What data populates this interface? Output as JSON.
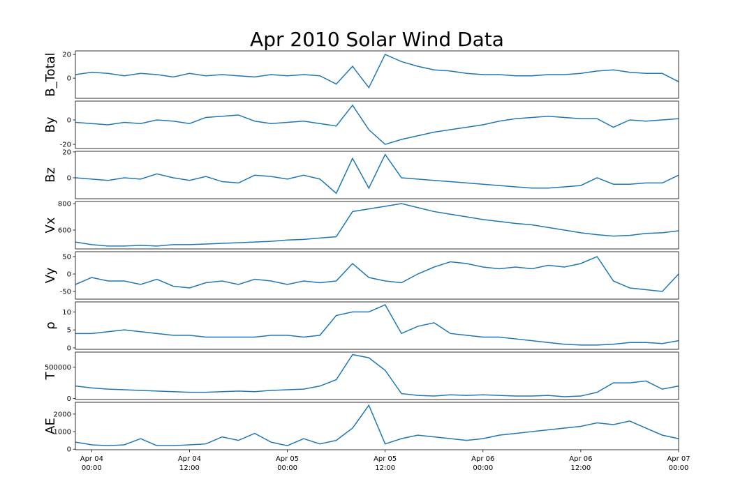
{
  "chart_data": [
    {
      "type": "line",
      "title": "Apr 2010 Solar Wind Data",
      "ylabel": "B_Total",
      "x": [
        "Apr 03 22:00",
        "Apr 04 00:00",
        "Apr 04 02:00",
        "Apr 04 04:00",
        "Apr 04 06:00",
        "Apr 04 08:00",
        "Apr 04 10:00",
        "Apr 04 12:00",
        "Apr 04 14:00",
        "Apr 04 16:00",
        "Apr 04 18:00",
        "Apr 04 20:00",
        "Apr 04 22:00",
        "Apr 05 00:00",
        "Apr 05 02:00",
        "Apr 05 04:00",
        "Apr 05 06:00",
        "Apr 05 08:00",
        "Apr 05 10:00",
        "Apr 05 12:00",
        "Apr 05 14:00",
        "Apr 05 16:00",
        "Apr 05 18:00",
        "Apr 05 20:00",
        "Apr 05 22:00",
        "Apr 06 00:00",
        "Apr 06 02:00",
        "Apr 06 04:00",
        "Apr 06 06:00",
        "Apr 06 08:00",
        "Apr 06 10:00",
        "Apr 06 12:00",
        "Apr 06 14:00",
        "Apr 06 16:00",
        "Apr 06 18:00",
        "Apr 06 20:00",
        "Apr 06 22:00",
        "Apr 07 00:00"
      ],
      "series": [
        {
          "color": "#1f77b4",
          "values": [
            3,
            5,
            4,
            2,
            4,
            3,
            1,
            4,
            2,
            3,
            2,
            1,
            3,
            2,
            3,
            2,
            -5,
            10,
            -8,
            20,
            14,
            10,
            7,
            6,
            4,
            3,
            3,
            2,
            2,
            3,
            3,
            4,
            6,
            7,
            5,
            4,
            4,
            -3
          ]
        }
      ],
      "ylim": [
        -17,
        23
      ],
      "yticks": [
        0,
        20
      ]
    },
    {
      "type": "line",
      "ylabel": "By",
      "x": [
        "Apr 03 22:00",
        "Apr 04 00:00",
        "Apr 04 02:00",
        "Apr 04 04:00",
        "Apr 04 06:00",
        "Apr 04 08:00",
        "Apr 04 10:00",
        "Apr 04 12:00",
        "Apr 04 14:00",
        "Apr 04 16:00",
        "Apr 04 18:00",
        "Apr 04 20:00",
        "Apr 04 22:00",
        "Apr 05 00:00",
        "Apr 05 02:00",
        "Apr 05 04:00",
        "Apr 05 06:00",
        "Apr 05 08:00",
        "Apr 05 10:00",
        "Apr 05 12:00",
        "Apr 05 14:00",
        "Apr 05 16:00",
        "Apr 05 18:00",
        "Apr 05 20:00",
        "Apr 05 22:00",
        "Apr 06 00:00",
        "Apr 06 02:00",
        "Apr 06 04:00",
        "Apr 06 06:00",
        "Apr 06 08:00",
        "Apr 06 10:00",
        "Apr 06 12:00",
        "Apr 06 14:00",
        "Apr 06 16:00",
        "Apr 06 18:00",
        "Apr 06 20:00",
        "Apr 06 22:00",
        "Apr 07 00:00"
      ],
      "series": [
        {
          "color": "#1f77b4",
          "values": [
            -2,
            -3,
            -4,
            -2,
            -3,
            0,
            -1,
            -3,
            2,
            3,
            4,
            -1,
            -3,
            -2,
            -1,
            -3,
            -5,
            12,
            -8,
            -20,
            -16,
            -13,
            -10,
            -8,
            -6,
            -4,
            -1,
            1,
            2,
            3,
            2,
            1,
            1,
            -6,
            0,
            -1,
            0,
            1
          ]
        }
      ],
      "ylim": [
        -23.4,
        15.4
      ],
      "yticks": [
        -20,
        0
      ]
    },
    {
      "type": "line",
      "ylabel": "Bz",
      "x": [
        "Apr 03 22:00",
        "Apr 04 00:00",
        "Apr 04 02:00",
        "Apr 04 04:00",
        "Apr 04 06:00",
        "Apr 04 08:00",
        "Apr 04 10:00",
        "Apr 04 12:00",
        "Apr 04 14:00",
        "Apr 04 16:00",
        "Apr 04 18:00",
        "Apr 04 20:00",
        "Apr 04 22:00",
        "Apr 05 00:00",
        "Apr 05 02:00",
        "Apr 05 04:00",
        "Apr 05 06:00",
        "Apr 05 08:00",
        "Apr 05 10:00",
        "Apr 05 12:00",
        "Apr 05 14:00",
        "Apr 05 16:00",
        "Apr 05 18:00",
        "Apr 05 20:00",
        "Apr 05 22:00",
        "Apr 06 00:00",
        "Apr 06 02:00",
        "Apr 06 04:00",
        "Apr 06 06:00",
        "Apr 06 08:00",
        "Apr 06 10:00",
        "Apr 06 12:00",
        "Apr 06 14:00",
        "Apr 06 16:00",
        "Apr 06 18:00",
        "Apr 06 20:00",
        "Apr 06 22:00",
        "Apr 07 00:00"
      ],
      "series": [
        {
          "color": "#1f77b4",
          "values": [
            0,
            -1,
            -2,
            0,
            -1,
            3,
            0,
            -2,
            1,
            -3,
            -4,
            2,
            1,
            -1,
            2,
            -1,
            -12,
            15,
            -8,
            18,
            0,
            -1,
            -2,
            -3,
            -4,
            -5,
            -6,
            -7,
            -8,
            -8,
            -7,
            -6,
            0,
            -5,
            -5,
            -4,
            -4,
            2
          ]
        }
      ],
      "ylim": [
        -16.2,
        20.5
      ],
      "yticks": [
        0,
        20
      ]
    },
    {
      "type": "line",
      "ylabel": "Vx",
      "x": [
        "Apr 03 22:00",
        "Apr 04 00:00",
        "Apr 04 02:00",
        "Apr 04 04:00",
        "Apr 04 06:00",
        "Apr 04 08:00",
        "Apr 04 10:00",
        "Apr 04 12:00",
        "Apr 04 14:00",
        "Apr 04 16:00",
        "Apr 04 18:00",
        "Apr 04 20:00",
        "Apr 04 22:00",
        "Apr 05 00:00",
        "Apr 05 02:00",
        "Apr 05 04:00",
        "Apr 05 06:00",
        "Apr 05 08:00",
        "Apr 05 10:00",
        "Apr 05 12:00",
        "Apr 05 14:00",
        "Apr 05 16:00",
        "Apr 05 18:00",
        "Apr 05 20:00",
        "Apr 05 22:00",
        "Apr 06 00:00",
        "Apr 06 02:00",
        "Apr 06 04:00",
        "Apr 06 06:00",
        "Apr 06 08:00",
        "Apr 06 10:00",
        "Apr 06 12:00",
        "Apr 06 14:00",
        "Apr 06 16:00",
        "Apr 06 18:00",
        "Apr 06 20:00",
        "Apr 06 22:00",
        "Apr 07 00:00"
      ],
      "series": [
        {
          "color": "#1f77b4",
          "values": [
            510,
            490,
            480,
            480,
            485,
            480,
            490,
            490,
            495,
            500,
            505,
            510,
            515,
            525,
            530,
            540,
            550,
            740,
            760,
            780,
            800,
            770,
            740,
            720,
            700,
            680,
            665,
            650,
            640,
            620,
            600,
            580,
            565,
            555,
            560,
            575,
            580,
            595
          ]
        }
      ],
      "ylim": [
        458,
        816
      ],
      "yticks": [
        600,
        800
      ]
    },
    {
      "type": "line",
      "ylabel": "Vy",
      "x": [
        "Apr 03 22:00",
        "Apr 04 00:00",
        "Apr 04 02:00",
        "Apr 04 04:00",
        "Apr 04 06:00",
        "Apr 04 08:00",
        "Apr 04 10:00",
        "Apr 04 12:00",
        "Apr 04 14:00",
        "Apr 04 16:00",
        "Apr 04 18:00",
        "Apr 04 20:00",
        "Apr 04 22:00",
        "Apr 05 00:00",
        "Apr 05 02:00",
        "Apr 05 04:00",
        "Apr 05 06:00",
        "Apr 05 08:00",
        "Apr 05 10:00",
        "Apr 05 12:00",
        "Apr 05 14:00",
        "Apr 05 16:00",
        "Apr 05 18:00",
        "Apr 05 20:00",
        "Apr 05 22:00",
        "Apr 06 00:00",
        "Apr 06 02:00",
        "Apr 06 04:00",
        "Apr 06 06:00",
        "Apr 06 08:00",
        "Apr 06 10:00",
        "Apr 06 12:00",
        "Apr 06 14:00",
        "Apr 06 16:00",
        "Apr 06 18:00",
        "Apr 06 20:00",
        "Apr 06 22:00",
        "Apr 07 00:00"
      ],
      "series": [
        {
          "color": "#1f77b4",
          "values": [
            -30,
            -10,
            -20,
            -20,
            -30,
            -15,
            -35,
            -40,
            -25,
            -20,
            -30,
            -15,
            -20,
            -30,
            -20,
            -25,
            -20,
            30,
            -10,
            -20,
            -25,
            0,
            20,
            35,
            30,
            20,
            15,
            20,
            15,
            25,
            20,
            30,
            50,
            -20,
            -40,
            -45,
            -50,
            0
          ]
        }
      ],
      "ylim": [
        -72,
        64
      ],
      "yticks": [
        -50,
        0,
        50
      ]
    },
    {
      "type": "line",
      "ylabel": "ρ",
      "x": [
        "Apr 03 22:00",
        "Apr 04 00:00",
        "Apr 04 02:00",
        "Apr 04 04:00",
        "Apr 04 06:00",
        "Apr 04 08:00",
        "Apr 04 10:00",
        "Apr 04 12:00",
        "Apr 04 14:00",
        "Apr 04 16:00",
        "Apr 04 18:00",
        "Apr 04 20:00",
        "Apr 04 22:00",
        "Apr 05 00:00",
        "Apr 05 02:00",
        "Apr 05 04:00",
        "Apr 05 06:00",
        "Apr 05 08:00",
        "Apr 05 10:00",
        "Apr 05 12:00",
        "Apr 05 14:00",
        "Apr 05 16:00",
        "Apr 05 18:00",
        "Apr 05 20:00",
        "Apr 05 22:00",
        "Apr 06 00:00",
        "Apr 06 02:00",
        "Apr 06 04:00",
        "Apr 06 06:00",
        "Apr 06 08:00",
        "Apr 06 10:00",
        "Apr 06 12:00",
        "Apr 06 14:00",
        "Apr 06 16:00",
        "Apr 06 18:00",
        "Apr 06 20:00",
        "Apr 06 22:00",
        "Apr 07 00:00"
      ],
      "series": [
        {
          "color": "#1f77b4",
          "values": [
            4,
            4,
            4.5,
            5,
            4.5,
            4,
            3.5,
            3.5,
            3,
            3,
            3,
            3,
            3.5,
            3.5,
            3,
            3.5,
            9,
            10,
            10,
            12,
            4,
            6,
            7,
            4,
            3.5,
            3,
            3,
            2.5,
            2,
            1.5,
            1,
            0.8,
            0.8,
            1,
            1.5,
            1.5,
            1.2,
            2
          ]
        }
      ],
      "ylim": [
        -0.4,
        12.8
      ],
      "yticks": [
        0,
        5,
        10
      ]
    },
    {
      "type": "line",
      "ylabel": "T",
      "x": [
        "Apr 03 22:00",
        "Apr 04 00:00",
        "Apr 04 02:00",
        "Apr 04 04:00",
        "Apr 04 06:00",
        "Apr 04 08:00",
        "Apr 04 10:00",
        "Apr 04 12:00",
        "Apr 04 14:00",
        "Apr 04 16:00",
        "Apr 04 18:00",
        "Apr 04 20:00",
        "Apr 04 22:00",
        "Apr 05 00:00",
        "Apr 05 02:00",
        "Apr 05 04:00",
        "Apr 05 06:00",
        "Apr 05 08:00",
        "Apr 05 10:00",
        "Apr 05 12:00",
        "Apr 05 14:00",
        "Apr 05 16:00",
        "Apr 05 18:00",
        "Apr 05 20:00",
        "Apr 05 22:00",
        "Apr 06 00:00",
        "Apr 06 02:00",
        "Apr 06 04:00",
        "Apr 06 06:00",
        "Apr 06 08:00",
        "Apr 06 10:00",
        "Apr 06 12:00",
        "Apr 06 14:00",
        "Apr 06 16:00",
        "Apr 06 18:00",
        "Apr 06 20:00",
        "Apr 06 22:00",
        "Apr 07 00:00"
      ],
      "series": [
        {
          "color": "#1f77b4",
          "values": [
            200000,
            170000,
            150000,
            140000,
            130000,
            120000,
            110000,
            100000,
            100000,
            110000,
            120000,
            110000,
            130000,
            140000,
            150000,
            200000,
            300000,
            700000,
            650000,
            450000,
            80000,
            50000,
            40000,
            60000,
            50000,
            60000,
            50000,
            40000,
            40000,
            50000,
            30000,
            40000,
            100000,
            250000,
            250000,
            280000,
            150000,
            200000
          ]
        }
      ],
      "ylim": [
        -15000,
        740000
      ],
      "yticks": [
        0,
        500000
      ]
    },
    {
      "type": "line",
      "ylabel": "AE",
      "x": [
        "Apr 03 22:00",
        "Apr 04 00:00",
        "Apr 04 02:00",
        "Apr 04 04:00",
        "Apr 04 06:00",
        "Apr 04 08:00",
        "Apr 04 10:00",
        "Apr 04 12:00",
        "Apr 04 14:00",
        "Apr 04 16:00",
        "Apr 04 18:00",
        "Apr 04 20:00",
        "Apr 04 22:00",
        "Apr 05 00:00",
        "Apr 05 02:00",
        "Apr 05 04:00",
        "Apr 05 06:00",
        "Apr 05 08:00",
        "Apr 05 10:00",
        "Apr 05 12:00",
        "Apr 05 14:00",
        "Apr 05 16:00",
        "Apr 05 18:00",
        "Apr 05 20:00",
        "Apr 05 22:00",
        "Apr 06 00:00",
        "Apr 06 02:00",
        "Apr 06 04:00",
        "Apr 06 06:00",
        "Apr 06 08:00",
        "Apr 06 10:00",
        "Apr 06 12:00",
        "Apr 06 14:00",
        "Apr 06 16:00",
        "Apr 06 18:00",
        "Apr 06 20:00",
        "Apr 06 22:00",
        "Apr 07 00:00"
      ],
      "series": [
        {
          "color": "#1f77b4",
          "values": [
            400,
            250,
            200,
            250,
            600,
            200,
            200,
            250,
            300,
            700,
            500,
            900,
            400,
            200,
            600,
            300,
            500,
            1200,
            2500,
            300,
            600,
            800,
            700,
            600,
            500,
            600,
            800,
            900,
            1000,
            1100,
            1200,
            1300,
            1500,
            1400,
            1600,
            1200,
            800,
            600
          ]
        }
      ],
      "ylim": [
        -30,
        2670
      ],
      "yticks": [
        0,
        1000,
        2000
      ],
      "xlim": [
        "Apr 03 22:00",
        "Apr 07 00:00"
      ],
      "xticks": [
        "Apr 04 00:00",
        "Apr 04 12:00",
        "Apr 05 00:00",
        "Apr 05 12:00",
        "Apr 06 00:00",
        "Apr 06 12:00",
        "Apr 07 00:00"
      ]
    }
  ]
}
